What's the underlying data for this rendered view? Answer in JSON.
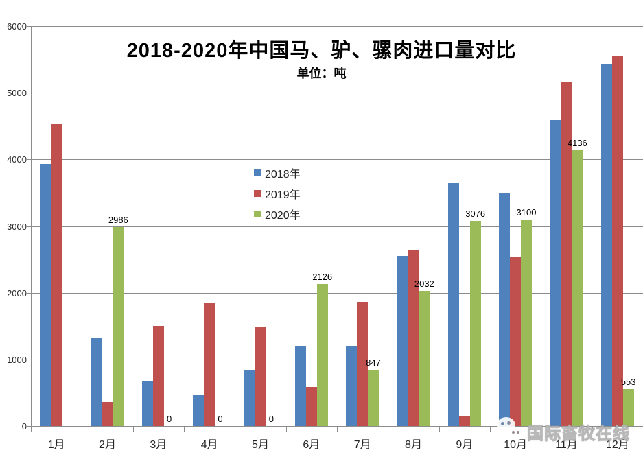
{
  "chart_data": {
    "type": "bar",
    "title": "2018-2020年中国马、驴、骡肉进口量对比",
    "subtitle": "单位：吨",
    "categories": [
      "1月",
      "2月",
      "3月",
      "4月",
      "5月",
      "6月",
      "7月",
      "8月",
      "9月",
      "10月",
      "11月",
      "12月"
    ],
    "series": [
      {
        "name": "2018年",
        "color": "#4F81BD",
        "data_labels": false,
        "values": [
          3930,
          1320,
          680,
          470,
          830,
          1190,
          1200,
          2550,
          3650,
          3500,
          4590,
          5420
        ]
      },
      {
        "name": "2019年",
        "color": "#C0504D",
        "data_labels": false,
        "values": [
          4530,
          360,
          1500,
          1850,
          1480,
          590,
          1860,
          2630,
          140,
          2530,
          5160,
          5550
        ]
      },
      {
        "name": "2020年",
        "color": "#9BBB59",
        "data_labels": true,
        "values": [
          null,
          2986,
          0,
          0,
          0,
          2126,
          847,
          2032,
          3076,
          3100,
          4136,
          553
        ]
      }
    ],
    "y_axis": {
      "min": 0,
      "max": 6000,
      "tick_interval": 1000,
      "ticks": [
        0,
        1000,
        2000,
        3000,
        4000,
        5000,
        6000
      ]
    },
    "grid": true,
    "legend_position": "inside-left-middle",
    "gridline_color": "#8C8C8C",
    "axis_color": "#8C8C8C",
    "label_color": "#262626"
  },
  "watermark": {
    "text": "国际畜牧在线",
    "icon": "wechat-icon"
  }
}
